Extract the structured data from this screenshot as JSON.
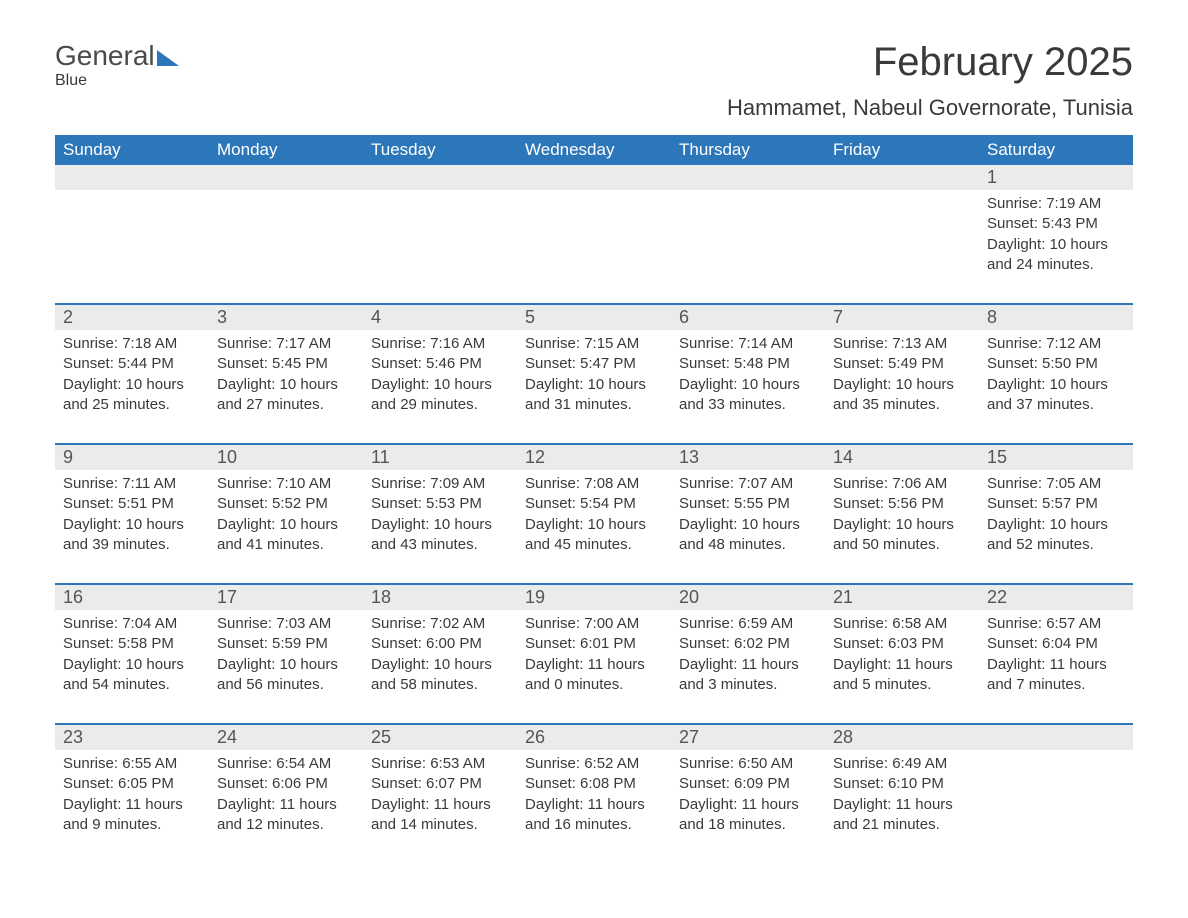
{
  "brand": {
    "part1": "General",
    "part2": "Blue"
  },
  "title": "February 2025",
  "location": "Hammamet, Nabeul Governorate, Tunisia",
  "colors": {
    "header_bg": "#2c76ba",
    "header_text": "#ffffff",
    "daynum_bg": "#ebebeb",
    "text": "#3a3a3a",
    "rule": "#2c76ba"
  },
  "days_of_week": [
    "Sunday",
    "Monday",
    "Tuesday",
    "Wednesday",
    "Thursday",
    "Friday",
    "Saturday"
  ],
  "weeks": [
    [
      {
        "n": "",
        "lines": [
          "",
          "",
          "",
          ""
        ]
      },
      {
        "n": "",
        "lines": [
          "",
          "",
          "",
          ""
        ]
      },
      {
        "n": "",
        "lines": [
          "",
          "",
          "",
          ""
        ]
      },
      {
        "n": "",
        "lines": [
          "",
          "",
          "",
          ""
        ]
      },
      {
        "n": "",
        "lines": [
          "",
          "",
          "",
          ""
        ]
      },
      {
        "n": "",
        "lines": [
          "",
          "",
          "",
          ""
        ]
      },
      {
        "n": "1",
        "lines": [
          "Sunrise: 7:19 AM",
          "Sunset: 5:43 PM",
          "Daylight: 10 hours",
          "and 24 minutes."
        ]
      }
    ],
    [
      {
        "n": "2",
        "lines": [
          "Sunrise: 7:18 AM",
          "Sunset: 5:44 PM",
          "Daylight: 10 hours",
          "and 25 minutes."
        ]
      },
      {
        "n": "3",
        "lines": [
          "Sunrise: 7:17 AM",
          "Sunset: 5:45 PM",
          "Daylight: 10 hours",
          "and 27 minutes."
        ]
      },
      {
        "n": "4",
        "lines": [
          "Sunrise: 7:16 AM",
          "Sunset: 5:46 PM",
          "Daylight: 10 hours",
          "and 29 minutes."
        ]
      },
      {
        "n": "5",
        "lines": [
          "Sunrise: 7:15 AM",
          "Sunset: 5:47 PM",
          "Daylight: 10 hours",
          "and 31 minutes."
        ]
      },
      {
        "n": "6",
        "lines": [
          "Sunrise: 7:14 AM",
          "Sunset: 5:48 PM",
          "Daylight: 10 hours",
          "and 33 minutes."
        ]
      },
      {
        "n": "7",
        "lines": [
          "Sunrise: 7:13 AM",
          "Sunset: 5:49 PM",
          "Daylight: 10 hours",
          "and 35 minutes."
        ]
      },
      {
        "n": "8",
        "lines": [
          "Sunrise: 7:12 AM",
          "Sunset: 5:50 PM",
          "Daylight: 10 hours",
          "and 37 minutes."
        ]
      }
    ],
    [
      {
        "n": "9",
        "lines": [
          "Sunrise: 7:11 AM",
          "Sunset: 5:51 PM",
          "Daylight: 10 hours",
          "and 39 minutes."
        ]
      },
      {
        "n": "10",
        "lines": [
          "Sunrise: 7:10 AM",
          "Sunset: 5:52 PM",
          "Daylight: 10 hours",
          "and 41 minutes."
        ]
      },
      {
        "n": "11",
        "lines": [
          "Sunrise: 7:09 AM",
          "Sunset: 5:53 PM",
          "Daylight: 10 hours",
          "and 43 minutes."
        ]
      },
      {
        "n": "12",
        "lines": [
          "Sunrise: 7:08 AM",
          "Sunset: 5:54 PM",
          "Daylight: 10 hours",
          "and 45 minutes."
        ]
      },
      {
        "n": "13",
        "lines": [
          "Sunrise: 7:07 AM",
          "Sunset: 5:55 PM",
          "Daylight: 10 hours",
          "and 48 minutes."
        ]
      },
      {
        "n": "14",
        "lines": [
          "Sunrise: 7:06 AM",
          "Sunset: 5:56 PM",
          "Daylight: 10 hours",
          "and 50 minutes."
        ]
      },
      {
        "n": "15",
        "lines": [
          "Sunrise: 7:05 AM",
          "Sunset: 5:57 PM",
          "Daylight: 10 hours",
          "and 52 minutes."
        ]
      }
    ],
    [
      {
        "n": "16",
        "lines": [
          "Sunrise: 7:04 AM",
          "Sunset: 5:58 PM",
          "Daylight: 10 hours",
          "and 54 minutes."
        ]
      },
      {
        "n": "17",
        "lines": [
          "Sunrise: 7:03 AM",
          "Sunset: 5:59 PM",
          "Daylight: 10 hours",
          "and 56 minutes."
        ]
      },
      {
        "n": "18",
        "lines": [
          "Sunrise: 7:02 AM",
          "Sunset: 6:00 PM",
          "Daylight: 10 hours",
          "and 58 minutes."
        ]
      },
      {
        "n": "19",
        "lines": [
          "Sunrise: 7:00 AM",
          "Sunset: 6:01 PM",
          "Daylight: 11 hours",
          "and 0 minutes."
        ]
      },
      {
        "n": "20",
        "lines": [
          "Sunrise: 6:59 AM",
          "Sunset: 6:02 PM",
          "Daylight: 11 hours",
          "and 3 minutes."
        ]
      },
      {
        "n": "21",
        "lines": [
          "Sunrise: 6:58 AM",
          "Sunset: 6:03 PM",
          "Daylight: 11 hours",
          "and 5 minutes."
        ]
      },
      {
        "n": "22",
        "lines": [
          "Sunrise: 6:57 AM",
          "Sunset: 6:04 PM",
          "Daylight: 11 hours",
          "and 7 minutes."
        ]
      }
    ],
    [
      {
        "n": "23",
        "lines": [
          "Sunrise: 6:55 AM",
          "Sunset: 6:05 PM",
          "Daylight: 11 hours",
          "and 9 minutes."
        ]
      },
      {
        "n": "24",
        "lines": [
          "Sunrise: 6:54 AM",
          "Sunset: 6:06 PM",
          "Daylight: 11 hours",
          "and 12 minutes."
        ]
      },
      {
        "n": "25",
        "lines": [
          "Sunrise: 6:53 AM",
          "Sunset: 6:07 PM",
          "Daylight: 11 hours",
          "and 14 minutes."
        ]
      },
      {
        "n": "26",
        "lines": [
          "Sunrise: 6:52 AM",
          "Sunset: 6:08 PM",
          "Daylight: 11 hours",
          "and 16 minutes."
        ]
      },
      {
        "n": "27",
        "lines": [
          "Sunrise: 6:50 AM",
          "Sunset: 6:09 PM",
          "Daylight: 11 hours",
          "and 18 minutes."
        ]
      },
      {
        "n": "28",
        "lines": [
          "Sunrise: 6:49 AM",
          "Sunset: 6:10 PM",
          "Daylight: 11 hours",
          "and 21 minutes."
        ]
      },
      {
        "n": "",
        "lines": [
          "",
          "",
          "",
          ""
        ]
      }
    ]
  ]
}
